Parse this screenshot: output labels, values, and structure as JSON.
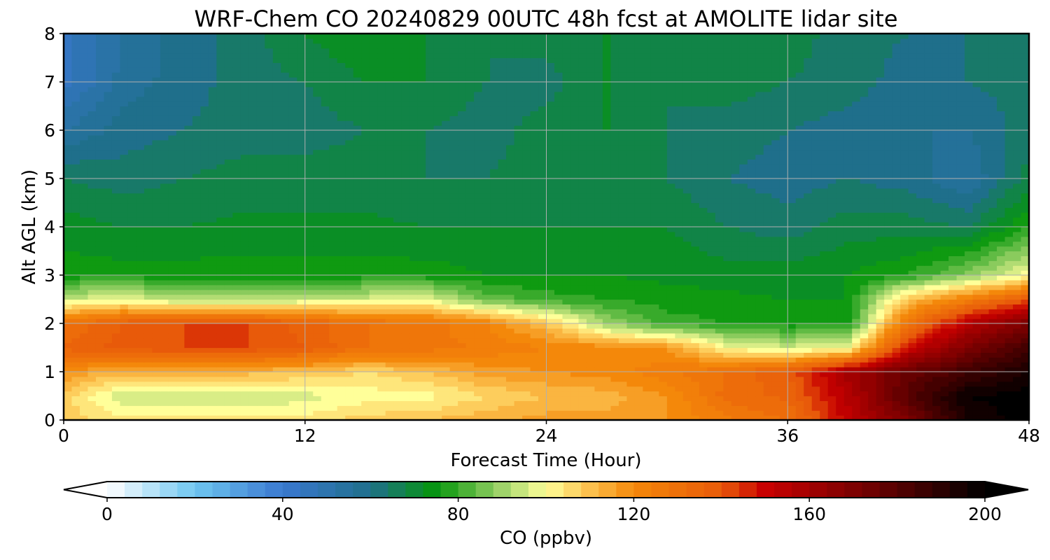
{
  "chart_data": {
    "type": "heatmap",
    "title": "WRF-Chem CO  20240829 00UTC 48h fcst at AMOLITE lidar site",
    "xlabel": "Forecast Time (Hour)",
    "ylabel": "Alt AGL (km)",
    "xlim": [
      0,
      48
    ],
    "ylim": [
      0,
      8
    ],
    "x_ticks": [
      0,
      12,
      24,
      36,
      48
    ],
    "y_ticks": [
      0,
      1,
      2,
      3,
      4,
      5,
      6,
      7,
      8
    ],
    "grid": true,
    "colorbar": {
      "label": "CO  (ppbv)",
      "range": [
        0,
        200
      ],
      "ticks": [
        0,
        40,
        80,
        120,
        160,
        200
      ],
      "extend": "both",
      "stops": [
        {
          "v": 0,
          "c": "#ffffff"
        },
        {
          "v": 20,
          "c": "#6ec6f0"
        },
        {
          "v": 40,
          "c": "#3a78d0"
        },
        {
          "v": 60,
          "c": "#1f6f8b"
        },
        {
          "v": 75,
          "c": "#05960b"
        },
        {
          "v": 90,
          "c": "#9fd36a"
        },
        {
          "v": 100,
          "c": "#ffff99"
        },
        {
          "v": 110,
          "c": "#fcc04d"
        },
        {
          "v": 120,
          "c": "#f4880a"
        },
        {
          "v": 140,
          "c": "#e85a0a"
        },
        {
          "v": 150,
          "c": "#c80000"
        },
        {
          "v": 175,
          "c": "#6a0000"
        },
        {
          "v": 200,
          "c": "#000000"
        }
      ]
    },
    "x": [
      0,
      3,
      6,
      9,
      12,
      15,
      18,
      21,
      24,
      27,
      30,
      33,
      36,
      39,
      42,
      45,
      48
    ],
    "y": [
      0,
      0.5,
      1,
      1.5,
      2,
      2.5,
      3,
      4,
      5,
      6,
      7,
      8
    ],
    "z": [
      [
        108,
        104,
        104,
        104,
        104,
        108,
        110,
        113,
        116,
        115,
        118,
        125,
        130,
        152,
        170,
        195,
        200
      ],
      [
        108,
        94,
        93,
        94,
        96,
        100,
        100,
        106,
        110,
        112,
        118,
        132,
        135,
        155,
        180,
        198,
        200
      ],
      [
        118,
        112,
        112,
        112,
        110,
        106,
        110,
        116,
        118,
        120,
        125,
        130,
        138,
        160,
        175,
        185,
        195
      ],
      [
        135,
        140,
        142,
        142,
        138,
        130,
        128,
        125,
        122,
        120,
        118,
        100,
        95,
        100,
        150,
        170,
        185
      ],
      [
        130,
        138,
        142,
        142,
        136,
        130,
        128,
        122,
        110,
        90,
        80,
        78,
        76,
        76,
        130,
        155,
        170
      ],
      [
        95,
        98,
        92,
        92,
        94,
        96,
        98,
        85,
        80,
        78,
        76,
        75,
        74,
        74,
        110,
        125,
        140
      ],
      [
        76,
        76,
        76,
        76,
        76,
        76,
        76,
        74,
        74,
        74,
        73,
        72,
        72,
        74,
        78,
        88,
        100
      ],
      [
        72,
        70,
        70,
        71,
        71,
        71,
        70,
        70,
        70,
        70,
        70,
        66,
        64,
        68,
        68,
        66,
        78
      ],
      [
        66,
        64,
        66,
        68,
        68,
        68,
        66,
        66,
        68,
        68,
        66,
        62,
        60,
        62,
        60,
        54,
        68
      ],
      [
        54,
        60,
        62,
        64,
        64,
        66,
        66,
        64,
        68,
        70,
        66,
        64,
        62,
        60,
        58,
        58,
        64
      ],
      [
        44,
        56,
        60,
        64,
        66,
        70,
        70,
        66,
        64,
        70,
        66,
        68,
        66,
        64,
        60,
        62,
        64
      ],
      [
        44,
        54,
        60,
        64,
        70,
        74,
        70,
        66,
        68,
        70,
        68,
        70,
        68,
        64,
        62,
        62,
        66
      ]
    ]
  }
}
